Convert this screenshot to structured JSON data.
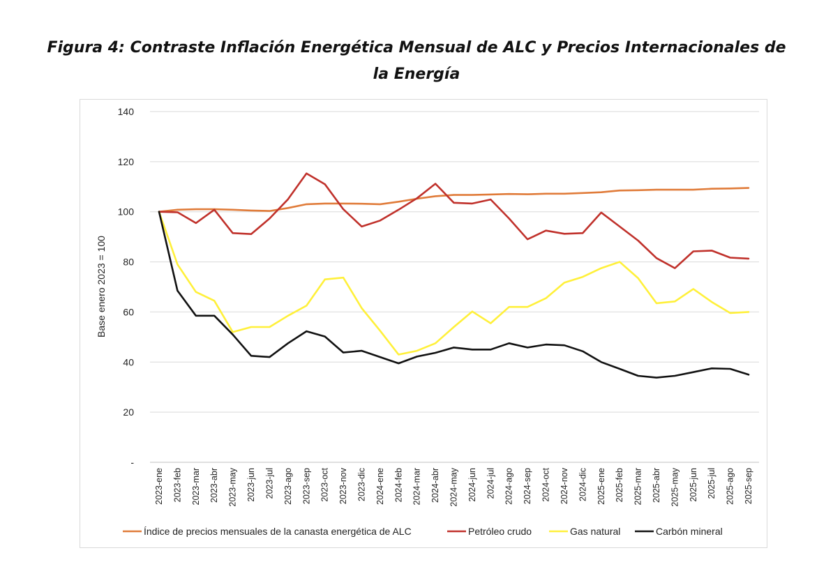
{
  "figure": {
    "title": "Figura 4: Contraste Inflación Energética Mensual de ALC y Precios Internacionales de la Energía"
  },
  "chart_data": {
    "type": "line",
    "title": "Figura 4: Contraste Inflación Energética Mensual de ALC y Precios Internacionales de la Energía",
    "xlabel": "",
    "ylabel": "Base enero 2023 = 100",
    "ylim": [
      0,
      140
    ],
    "yticks": [
      0,
      20,
      40,
      60,
      80,
      100,
      120,
      140
    ],
    "ytick_labels": [
      "-",
      "20",
      "40",
      "60",
      "80",
      "100",
      "120",
      "140"
    ],
    "grid": true,
    "legend_position": "bottom",
    "categories": [
      "2023-ene",
      "2023-feb",
      "2023-mar",
      "2023-abr",
      "2023-may",
      "2023-jun",
      "2023-jul",
      "2023-ago",
      "2023-sep",
      "2023-oct",
      "2023-nov",
      "2023-dic",
      "2024-ene",
      "2024-feb",
      "2024-mar",
      "2024-abr",
      "2024-may",
      "2024-jun",
      "2024-jul",
      "2024-ago",
      "2024-sep",
      "2024-oct",
      "2024-nov",
      "2024-dic",
      "2025-ene",
      "2025-feb",
      "2025-mar",
      "2025-abr",
      "2025-may",
      "2025-jun",
      "2025-jul",
      "2025-ago",
      "2025-sep"
    ],
    "series": [
      {
        "name": "Índice de precios mensuales de la canasta energética de ALC",
        "color": "#E07B39",
        "values": [
          100,
          100.8,
          101,
          101,
          100.8,
          100.5,
          100.3,
          101.5,
          103,
          103.3,
          103.3,
          103.2,
          103,
          104,
          105.2,
          106.2,
          106.7,
          106.7,
          106.9,
          107.1,
          107,
          107.2,
          107.2,
          107.5,
          107.8,
          108.5,
          108.6,
          108.8,
          108.8,
          108.8,
          109.2,
          109.3,
          109.5
        ]
      },
      {
        "name": "Petróleo crudo",
        "color": "#C0312B",
        "values": [
          100,
          99.8,
          95.5,
          100.8,
          91.5,
          91.1,
          97.3,
          105,
          115.3,
          111,
          101,
          94.1,
          96.5,
          100.8,
          105.4,
          111.2,
          103.6,
          103.3,
          104.9,
          97.3,
          89,
          92.5,
          91.2,
          91.5,
          99.7,
          94.1,
          88.5,
          81.5,
          77.5,
          84.2,
          84.5,
          81.7,
          81.3
        ]
      },
      {
        "name": "Gas natural",
        "color": "#FFF03A",
        "values": [
          100,
          79,
          68,
          64.5,
          52,
          54,
          54,
          58.5,
          62.5,
          73,
          73.7,
          61.5,
          52.5,
          43,
          44.5,
          47.5,
          54,
          60.2,
          55.5,
          62,
          62,
          65.5,
          71.7,
          74,
          77.5,
          80,
          73.5,
          63.5,
          64.2,
          69.2,
          64,
          59.6,
          60
        ]
      },
      {
        "name": "Carbón mineral",
        "color": "#111111",
        "values": [
          100,
          68.5,
          58.5,
          58.5,
          51,
          42.5,
          42,
          47.5,
          52.3,
          50.2,
          43.8,
          44.5,
          42,
          39.5,
          42.2,
          43.7,
          45.8,
          45,
          45,
          47.5,
          45.8,
          47,
          46.7,
          44.3,
          40,
          37.3,
          34.5,
          33.8,
          34.5,
          36,
          37.5,
          37.3,
          35
        ]
      }
    ]
  }
}
